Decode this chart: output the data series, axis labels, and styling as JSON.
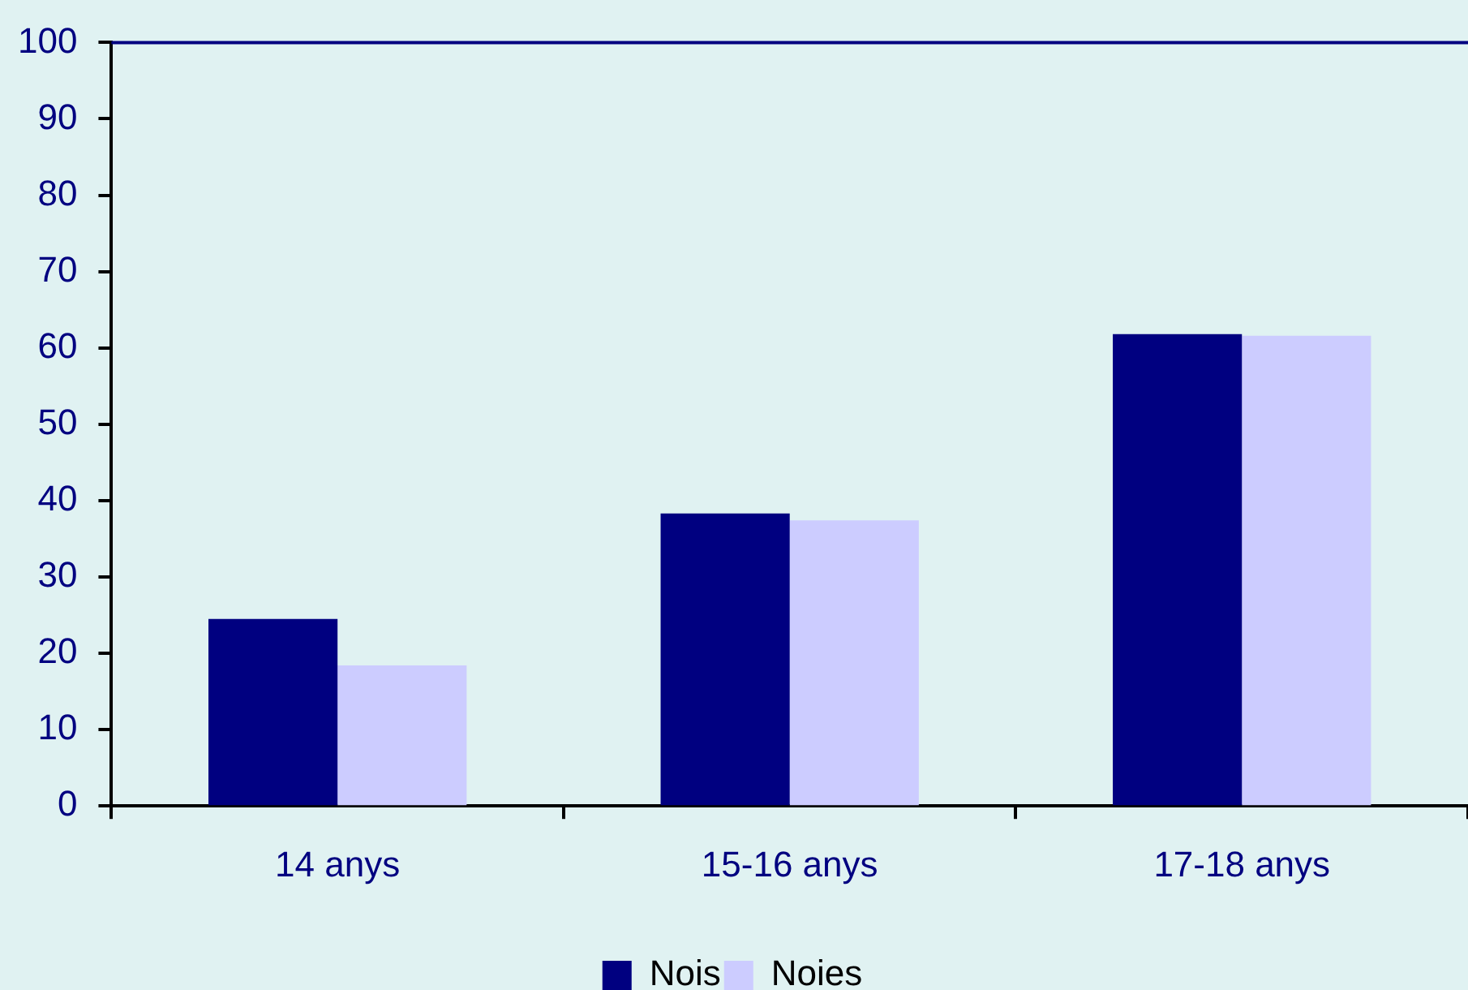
{
  "chart_data": {
    "type": "bar",
    "categories": [
      "14 anys",
      "15-16 anys",
      "17-18 anys"
    ],
    "series": [
      {
        "name": "Nois",
        "color": "#000080",
        "values": [
          24.5,
          38.3,
          61.8
        ]
      },
      {
        "name": "Noies",
        "color": "#ccccff",
        "values": [
          18.4,
          37.4,
          61.6
        ]
      }
    ],
    "ylim": [
      0,
      100
    ],
    "yticks": [
      0,
      10,
      20,
      30,
      40,
      50,
      60,
      70,
      80,
      90,
      100
    ],
    "grid": false,
    "legend": "bottom"
  }
}
